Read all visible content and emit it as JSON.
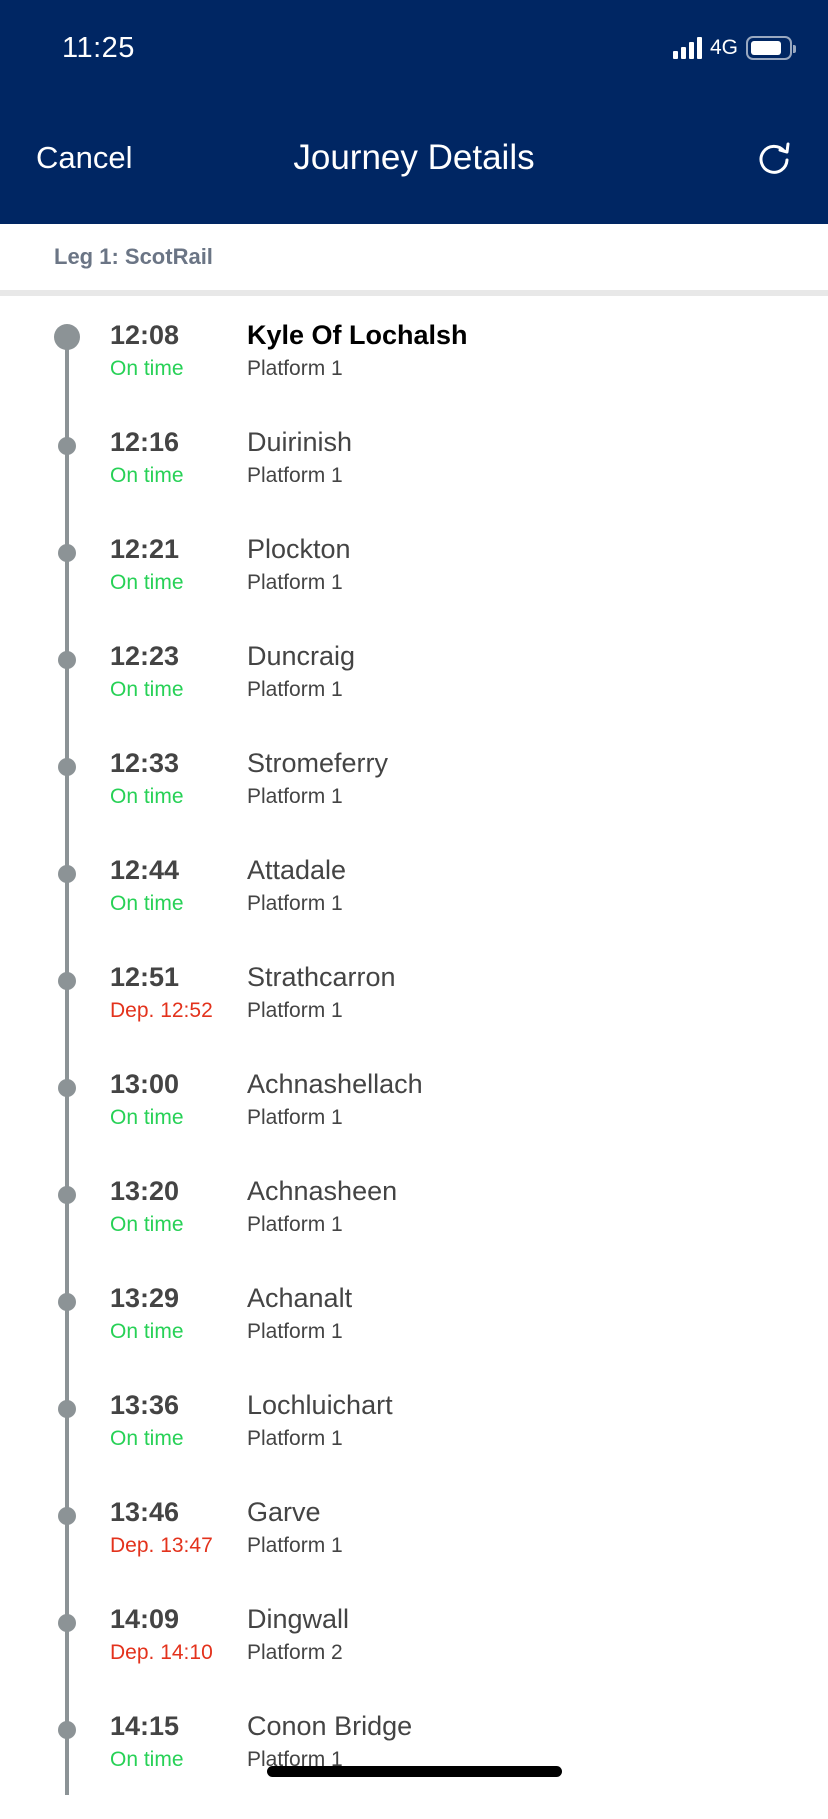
{
  "status_bar": {
    "time": "11:25",
    "network": "4G",
    "battery_level": 0.8
  },
  "nav": {
    "cancel_label": "Cancel",
    "title": "Journey Details",
    "refresh_icon": "refresh-icon"
  },
  "leg": {
    "label": "Leg 1: ScotRail"
  },
  "colors": {
    "header": "#002663",
    "on_time": "#27d156",
    "late": "#e3321c",
    "timeline": "#8c9396"
  },
  "stops": [
    {
      "time": "12:08",
      "status": "On time",
      "late": false,
      "station": "Kyle Of Lochalsh",
      "platform": "Platform 1"
    },
    {
      "time": "12:16",
      "status": "On time",
      "late": false,
      "station": "Duirinish",
      "platform": "Platform 1"
    },
    {
      "time": "12:21",
      "status": "On time",
      "late": false,
      "station": "Plockton",
      "platform": "Platform 1"
    },
    {
      "time": "12:23",
      "status": "On time",
      "late": false,
      "station": "Duncraig",
      "platform": "Platform 1"
    },
    {
      "time": "12:33",
      "status": "On time",
      "late": false,
      "station": "Stromeferry",
      "platform": "Platform 1"
    },
    {
      "time": "12:44",
      "status": "On time",
      "late": false,
      "station": "Attadale",
      "platform": "Platform 1"
    },
    {
      "time": "12:51",
      "status": "Dep. 12:52",
      "late": true,
      "station": "Strathcarron",
      "platform": "Platform 1"
    },
    {
      "time": "13:00",
      "status": "On time",
      "late": false,
      "station": "Achnashellach",
      "platform": "Platform 1"
    },
    {
      "time": "13:20",
      "status": "On time",
      "late": false,
      "station": "Achnasheen",
      "platform": "Platform 1"
    },
    {
      "time": "13:29",
      "status": "On time",
      "late": false,
      "station": "Achanalt",
      "platform": "Platform 1"
    },
    {
      "time": "13:36",
      "status": "On time",
      "late": false,
      "station": "Lochluichart",
      "platform": "Platform 1"
    },
    {
      "time": "13:46",
      "status": "Dep. 13:47",
      "late": true,
      "station": "Garve",
      "platform": "Platform 1"
    },
    {
      "time": "14:09",
      "status": "Dep. 14:10",
      "late": true,
      "station": "Dingwall",
      "platform": "Platform 2"
    },
    {
      "time": "14:15",
      "status": "On time",
      "late": false,
      "station": "Conon Bridge",
      "platform": "Platform 1"
    }
  ]
}
